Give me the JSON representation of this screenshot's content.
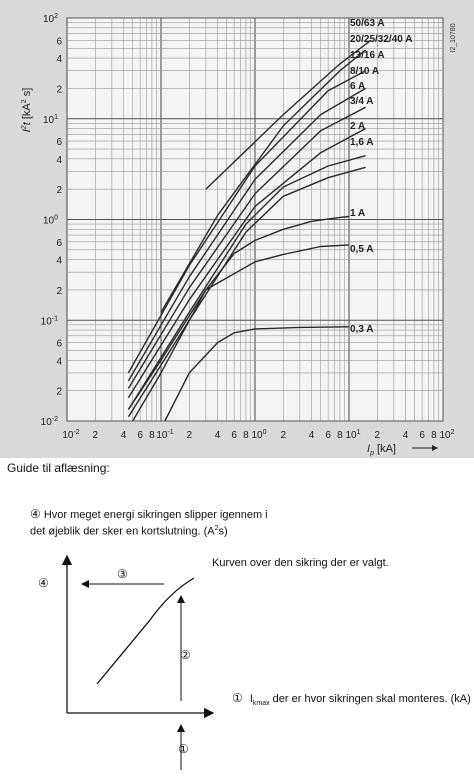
{
  "chart_data": {
    "type": "line",
    "xscale": "log",
    "yscale": "log",
    "xlim": [
      0.01,
      100
    ],
    "ylim": [
      0.01,
      100
    ],
    "grid": true,
    "doc_id": "I2_10780",
    "xlabel": {
      "sym": "I",
      "sub": "p",
      "unit": "[kA]"
    },
    "ylabel": {
      "sym": "I",
      "sup": "2",
      "t": "t",
      "unit": "[kA",
      "unit_sup": "2",
      "unit_end": " s]"
    },
    "xticks": [
      {
        "v": 0.01,
        "m": "10",
        "e": "-2"
      },
      {
        "v": 0.02,
        "m": "2"
      },
      {
        "v": 0.04,
        "m": "4"
      },
      {
        "v": 0.06,
        "m": "6"
      },
      {
        "v": 0.08,
        "m": "8"
      },
      {
        "v": 0.1,
        "m": "10",
        "e": "-1"
      },
      {
        "v": 0.2,
        "m": "2"
      },
      {
        "v": 0.4,
        "m": "4"
      },
      {
        "v": 0.6,
        "m": "6"
      },
      {
        "v": 0.8,
        "m": "8"
      },
      {
        "v": 1,
        "m": "10",
        "e": "0"
      },
      {
        "v": 2,
        "m": "2"
      },
      {
        "v": 4,
        "m": "4"
      },
      {
        "v": 6,
        "m": "6"
      },
      {
        "v": 8,
        "m": "8"
      },
      {
        "v": 10,
        "m": "10",
        "e": "1"
      },
      {
        "v": 20,
        "m": "2"
      },
      {
        "v": 40,
        "m": "4"
      },
      {
        "v": 60,
        "m": "6"
      },
      {
        "v": 80,
        "m": "8"
      },
      {
        "v": 100,
        "m": "10",
        "e": "2"
      }
    ],
    "yticks": [
      {
        "v": 0.01,
        "m": "10",
        "e": "-2"
      },
      {
        "v": 0.02,
        "m": "2"
      },
      {
        "v": 0.04,
        "m": "4"
      },
      {
        "v": 0.06,
        "m": "6"
      },
      {
        "v": 0.1,
        "m": "10",
        "e": "-1"
      },
      {
        "v": 0.2,
        "m": "2"
      },
      {
        "v": 0.4,
        "m": "4"
      },
      {
        "v": 0.6,
        "m": "6"
      },
      {
        "v": 1,
        "m": "10",
        "e": "0"
      },
      {
        "v": 2,
        "m": "2"
      },
      {
        "v": 4,
        "m": "4"
      },
      {
        "v": 6,
        "m": "6"
      },
      {
        "v": 10,
        "m": "10",
        "e": "1"
      },
      {
        "v": 20,
        "m": "2"
      },
      {
        "v": 40,
        "m": "4"
      },
      {
        "v": 60,
        "m": "6"
      },
      {
        "v": 100,
        "m": "10",
        "e": "2"
      }
    ],
    "series": [
      {
        "name": "50/63 A",
        "points": [
          [
            0.3,
            2
          ],
          [
            2,
            11
          ],
          [
            8,
            35
          ],
          [
            17,
            60
          ]
        ]
      },
      {
        "name": "20/25/32/40 A",
        "points": [
          [
            0.1,
            0.12
          ],
          [
            0.4,
            1.1
          ],
          [
            2,
            8.5
          ],
          [
            8,
            30
          ],
          [
            15,
            48
          ]
        ]
      },
      {
        "name": "13/16 A",
        "points": [
          [
            0.045,
            0.03
          ],
          [
            0.2,
            0.35
          ],
          [
            1,
            3.4
          ],
          [
            6,
            19
          ],
          [
            15,
            30
          ]
        ]
      },
      {
        "name": "8/10 A",
        "points": [
          [
            0.045,
            0.025
          ],
          [
            0.2,
            0.27
          ],
          [
            1,
            2.5
          ],
          [
            5,
            11
          ],
          [
            15,
            20
          ]
        ]
      },
      {
        "name": "6 A",
        "points": [
          [
            0.045,
            0.021
          ],
          [
            0.2,
            0.21
          ],
          [
            1,
            1.8
          ],
          [
            5,
            7.6
          ],
          [
            15,
            13
          ]
        ]
      },
      {
        "name": "3/4 A",
        "points": [
          [
            0.045,
            0.017
          ],
          [
            0.2,
            0.16
          ],
          [
            1,
            1.35
          ],
          [
            5,
            4.6
          ],
          [
            15,
            8
          ]
        ]
      },
      {
        "name": "2 A",
        "points": [
          [
            0.045,
            0.013
          ],
          [
            0.2,
            0.12
          ],
          [
            0.8,
            0.9
          ],
          [
            2,
            2.1
          ],
          [
            6,
            3.4
          ],
          [
            15,
            4.3
          ]
        ]
      },
      {
        "name": "1,6 A",
        "points": [
          [
            0.045,
            0.011
          ],
          [
            0.2,
            0.1
          ],
          [
            0.8,
            0.75
          ],
          [
            2,
            1.7
          ],
          [
            6,
            2.6
          ],
          [
            15,
            3.3
          ]
        ]
      },
      {
        "name": "1 A",
        "points": [
          [
            0.05,
            0.01
          ],
          [
            0.1,
            0.03
          ],
          [
            0.3,
            0.2
          ],
          [
            0.6,
            0.46
          ],
          [
            1,
            0.62
          ],
          [
            2,
            0.8
          ],
          [
            4,
            0.96
          ],
          [
            8,
            1.05
          ],
          [
            10,
            1.07
          ]
        ]
      },
      {
        "name": "0,5 A",
        "points": [
          [
            0.045,
            0.013
          ],
          [
            0.1,
            0.04
          ],
          [
            0.3,
            0.2
          ],
          [
            1,
            0.38
          ],
          [
            2,
            0.45
          ],
          [
            5,
            0.54
          ],
          [
            10,
            0.56
          ]
        ]
      },
      {
        "name": "0,3 A",
        "points": [
          [
            0.11,
            0.01
          ],
          [
            0.2,
            0.03
          ],
          [
            0.4,
            0.06
          ],
          [
            0.6,
            0.075
          ],
          [
            1,
            0.082
          ],
          [
            3,
            0.085
          ],
          [
            10,
            0.086
          ]
        ]
      }
    ]
  },
  "guide": {
    "title": "Guide til aflæsning:",
    "energy_line1": "Hvor meget energi sikringen slipper igennem i",
    "energy_line2": "det øjeblik der sker en kortslutning.  (A",
    "energy_sup": "2",
    "energy_end": "s)",
    "curve_label": "Kurven over den sikring der er valgt.",
    "current_label_start": "I",
    "current_label_sub": "kmax",
    "current_label_end": " der er hvor sikringen skal monteres. (kA)",
    "num_1": "①",
    "num_2": "②",
    "num_3": "③",
    "num_4": "④"
  }
}
